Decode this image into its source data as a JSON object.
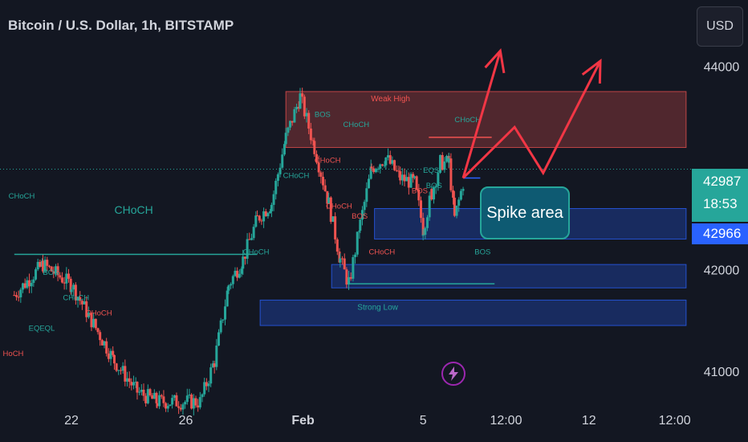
{
  "chart_title": "Bitcoin / U.S. Dollar, 1h, BITSTAMP",
  "currency_button": "USD",
  "colors": {
    "background": "#131722",
    "up": "#26a69a",
    "down": "#ef5350",
    "supply_zone": "#ef5350",
    "demand_zone": "#2962ff",
    "arrow": "#f23645",
    "current_price_bg": "#26a69a",
    "line_price_bg": "#2962ff",
    "annotation_box": "#0e5a72"
  },
  "icons": {
    "alert": "lightning-bolt-icon"
  },
  "chart_data": {
    "type": "candlestick",
    "x_tick_labels": [
      "22",
      "26",
      "Feb",
      "5",
      "12:00",
      "12",
      "12:00"
    ],
    "y_tick_labels": [
      "44000",
      "42000",
      "41000"
    ],
    "ylim": [
      40700,
      44650
    ],
    "current_price": {
      "value": "42987",
      "countdown": "18:53"
    },
    "line_price": "42966",
    "annotation": "Spike area",
    "structure_labels": [
      "CHoCH",
      "BOS",
      "CHoCH",
      "EQEQL",
      "CHoCH",
      "HoCH",
      "BOS",
      "CHoCH",
      "CHoCH",
      "CHoCH",
      "BOS",
      "CHoCH",
      "CHoCH",
      "BOS",
      "CHoCH",
      "EQS",
      "BOS",
      "BOS",
      "CHoCH"
    ],
    "zone_labels": [
      "Weak High",
      "Strong Low"
    ],
    "ohlc_path": [
      {
        "x": -0.5,
        "y": 41750
      },
      {
        "x": 0.5,
        "y": 42050
      },
      {
        "x": 1.5,
        "y": 41850
      },
      {
        "x": 2.2,
        "y": 41500
      },
      {
        "x": 3.0,
        "y": 41100
      },
      {
        "x": 3.8,
        "y": 40800
      },
      {
        "x": 4.5,
        "y": 40700
      },
      {
        "x": 6.0,
        "y": 40700
      },
      {
        "x": 6.5,
        "y": 41100
      },
      {
        "x": 7.0,
        "y": 41850
      },
      {
        "x": 7.5,
        "y": 42100
      },
      {
        "x": 8.0,
        "y": 42500
      },
      {
        "x": 8.5,
        "y": 42650
      },
      {
        "x": 9.0,
        "y": 43300
      },
      {
        "x": 9.5,
        "y": 43700
      },
      {
        "x": 10.0,
        "y": 43200
      },
      {
        "x": 10.5,
        "y": 42650
      },
      {
        "x": 10.9,
        "y": 42100
      },
      {
        "x": 11.2,
        "y": 41850
      },
      {
        "x": 11.6,
        "y": 42450
      },
      {
        "x": 12.0,
        "y": 43000
      },
      {
        "x": 12.5,
        "y": 43100
      },
      {
        "x": 13.0,
        "y": 42900
      },
      {
        "x": 13.5,
        "y": 42850
      },
      {
        "x": 13.8,
        "y": 42400
      },
      {
        "x": 14.1,
        "y": 42750
      },
      {
        "x": 14.4,
        "y": 43050
      },
      {
        "x": 14.7,
        "y": 43050
      },
      {
        "x": 14.9,
        "y": 42500
      },
      {
        "x": 15.2,
        "y": 42850
      }
    ],
    "zones": [
      {
        "label": "Weak High",
        "from_x": 9.0,
        "to_x": 23.0,
        "top": 43750,
        "bottom": 43200,
        "type": "supply"
      },
      {
        "label": "",
        "from_x": 12.1,
        "to_x": 23.0,
        "top": 42600,
        "bottom": 42300,
        "type": "demand"
      },
      {
        "label": "",
        "from_x": 10.6,
        "to_x": 23.0,
        "top": 42050,
        "bottom": 41820,
        "type": "demand"
      },
      {
        "label": "Strong Low",
        "from_x": 8.1,
        "to_x": 23.0,
        "top": 41700,
        "bottom": 41450,
        "type": "demand"
      }
    ],
    "forecast_path": [
      {
        "x": 15.2,
        "y": 42900
      },
      {
        "x": 17.0,
        "y": 43400
      },
      {
        "x": 18.0,
        "y": 42950
      },
      {
        "x": 20.0,
        "y": 44050
      }
    ],
    "forecast_path_2": [
      {
        "x": 15.2,
        "y": 42900
      },
      {
        "x": 16.5,
        "y": 44150
      }
    ]
  }
}
